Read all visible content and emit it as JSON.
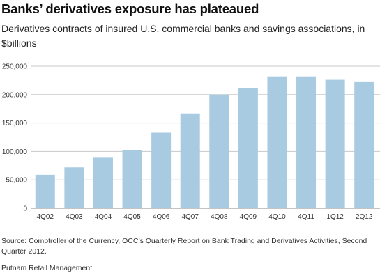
{
  "title": "Banks’ derivatives exposure has plateaued",
  "subtitle": "Derivatives contracts of insured U.S. commercial banks and savings associations, in $billions",
  "source": "Source: Comptroller of the Currency, OCC’s Quarterly Report on Bank Trading and Derivatives Activities, Second Quarter 2012.",
  "credit": "Putnam Retail Management",
  "colors": {
    "bar": "#a8cbe2",
    "grid": "#c8c8c8",
    "axis": "#888888"
  },
  "chart_data": {
    "type": "bar",
    "title": "Banks’ derivatives exposure has plateaued",
    "subtitle": "Derivatives contracts of insured U.S. commercial banks and savings associations, in $billions",
    "categories": [
      "4Q02",
      "4Q03",
      "4Q04",
      "4Q05",
      "4Q06",
      "4Q07",
      "4Q08",
      "4Q09",
      "4Q10",
      "4Q11",
      "1Q12",
      "2Q12"
    ],
    "values": [
      59000,
      72000,
      89000,
      102000,
      133000,
      167000,
      200000,
      212000,
      232000,
      232000,
      226000,
      222000
    ],
    "ylim": [
      0,
      250000
    ],
    "yticks": [
      0,
      50000,
      100000,
      150000,
      200000,
      250000
    ],
    "ytick_labels": [
      "0",
      "50,000",
      "100,000",
      "150,000",
      "200,000",
      "250,000"
    ],
    "grid": true,
    "legend": "none"
  }
}
